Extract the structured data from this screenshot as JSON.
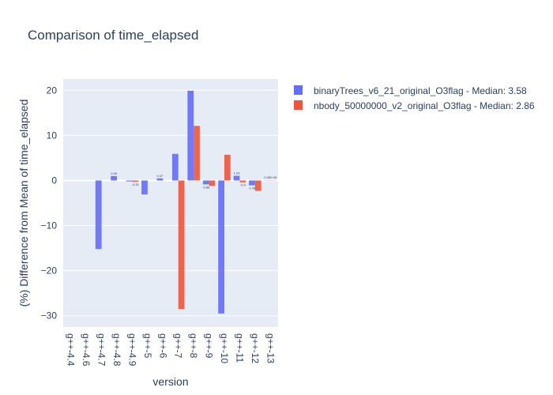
{
  "chart_data": {
    "type": "bar",
    "title": "Comparison of time_elapsed",
    "xlabel": "version",
    "ylabel": "(%) Difference from Mean of time_elapsed",
    "categories": [
      "g++-4.4",
      "g++-4.6",
      "g++-4.7",
      "g++-4.8",
      "g++-4.9",
      "g++-5",
      "g++-6",
      "g++-7",
      "g++-8",
      "g++-9",
      "g++-10",
      "g++-11",
      "g++-12",
      "g++-13"
    ],
    "ylim": [
      -32.5,
      22.5
    ],
    "yticks": [
      -30,
      -20,
      -10,
      0,
      10,
      20
    ],
    "ytick_labels": [
      "−30",
      "−20",
      "−10",
      "0",
      "10",
      "20"
    ],
    "grid": true,
    "legend_position": "top-right",
    "series": [
      {
        "name": "binaryTrees_v6_21_original_O3flag - Median: 3.58",
        "color": "#636efa",
        "values": [
          0,
          0,
          -15.2,
          0.99,
          -0.2,
          -3.1,
          0.47,
          5.9,
          19.9,
          -0.86,
          -29.5,
          1.03,
          -1.08,
          0.05
        ],
        "labels": [
          "",
          "",
          "",
          "0.99",
          "",
          "",
          "0.47",
          "",
          "",
          "-0.86",
          "",
          "1.03",
          "-1.08",
          "0.05"
        ]
      },
      {
        "name": "nbody_50000000_v2_original_O3flag - Median: 2.86",
        "color": "#ef553b",
        "values": [
          0,
          0,
          0,
          0,
          -0.31,
          0,
          0,
          -28.5,
          12.1,
          -1.2,
          5.7,
          -0.4,
          -2.3,
          0.05
        ],
        "labels": [
          "",
          "",
          "",
          "",
          "-0.31",
          "",
          "",
          "",
          "",
          "",
          "",
          "-0.4",
          "",
          "0.05"
        ]
      }
    ]
  }
}
